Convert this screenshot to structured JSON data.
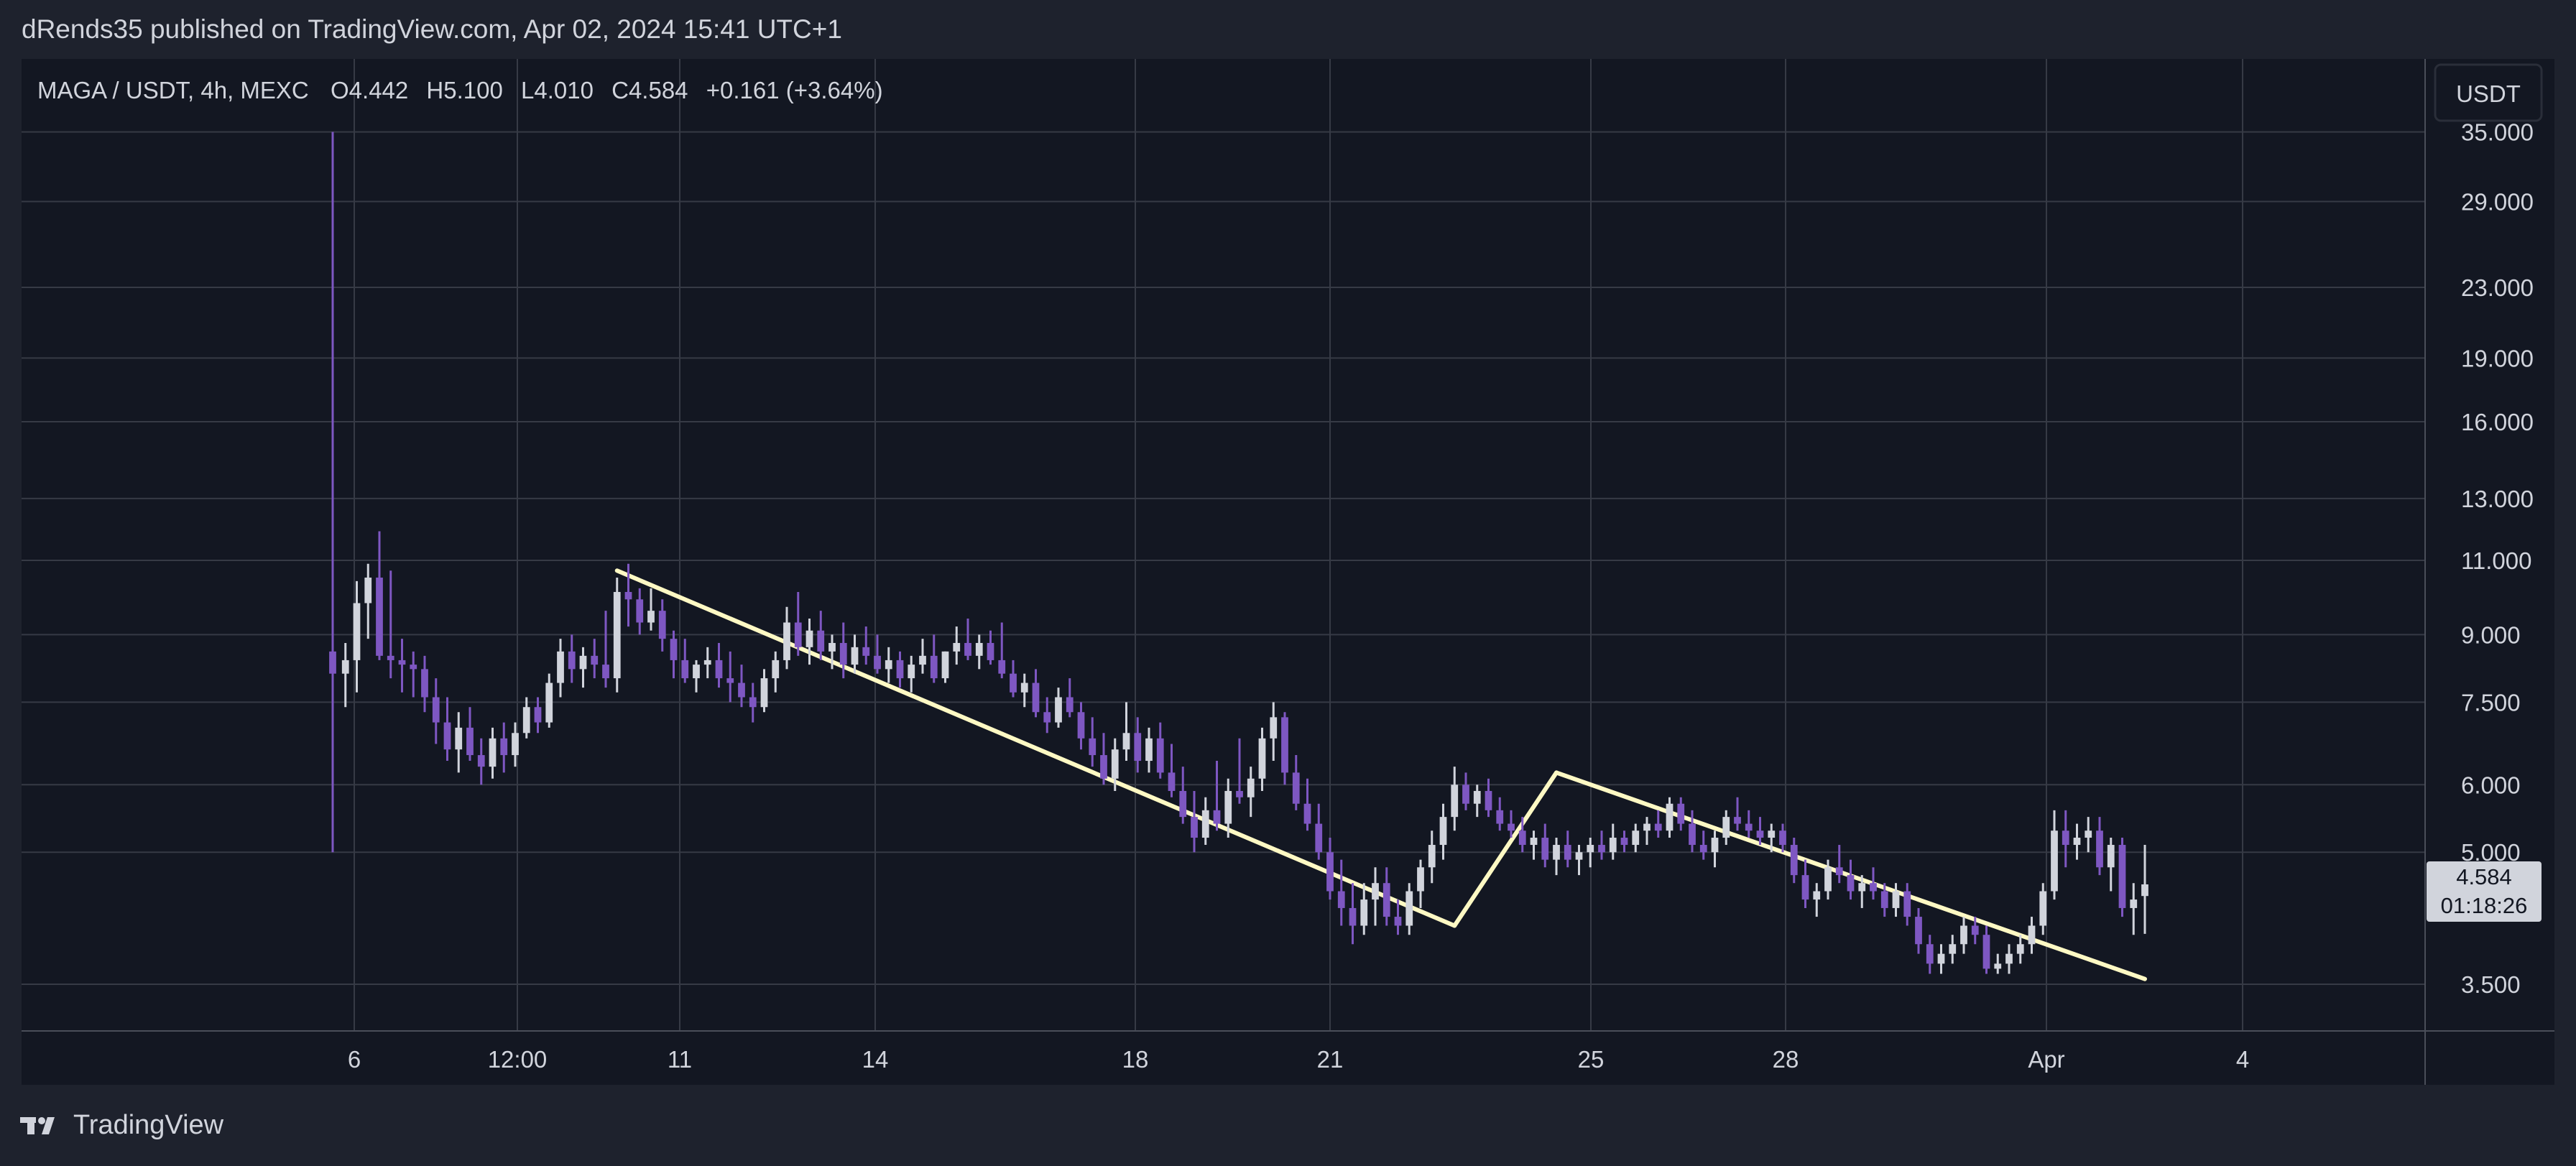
{
  "header": {
    "publish_info": "dRends35 published on TradingView.com, Apr 02, 2024 15:41 UTC+1"
  },
  "legend": {
    "symbol": "MAGA / USDT, 4h, MEXC",
    "open": "O4.442",
    "high": "H5.100",
    "low": "L4.010",
    "close": "C4.584",
    "change": "+0.161 (+3.64%)"
  },
  "price_axis": {
    "currency_button": "USDT",
    "ticks": [
      "35.000",
      "29.000",
      "23.000",
      "19.000",
      "16.000",
      "13.000",
      "11.000",
      "9.000",
      "7.500",
      "6.000",
      "5.000",
      "3.500"
    ],
    "last_price": "4.584",
    "countdown": "01:18:26"
  },
  "time_axis": {
    "ticks": [
      "6",
      "12:00",
      "11",
      "14",
      "18",
      "21",
      "25",
      "28",
      "Apr",
      "4"
    ]
  },
  "footer": {
    "brand": "TradingView"
  },
  "colors": {
    "background": "#131722",
    "frame": "#1e222d",
    "grid": "#363a45",
    "up_candle": "#d1d4dc",
    "down_candle": "#7e57c2",
    "trendline": "#fff9c4",
    "text": "#d1d4dc"
  },
  "chart_data": {
    "type": "candlestick",
    "symbol": "MAGA / USDT",
    "interval": "4h",
    "exchange": "MEXC",
    "y_scale": "log",
    "ylim": [
      3.2,
      35
    ],
    "x_ticks": [
      "6",
      "12:00",
      "11",
      "14",
      "18",
      "21",
      "25",
      "28",
      "Apr",
      "4"
    ],
    "y_ticks": [
      35,
      29,
      23,
      19,
      16,
      13,
      11,
      9,
      7.5,
      6,
      5,
      3.5
    ],
    "grid": true,
    "ohlc_note": "OHLC per 4h candle in chronological order, estimated from the chart",
    "candles": [
      [
        8.6,
        35.0,
        5.0,
        8.1
      ],
      [
        8.1,
        8.8,
        7.4,
        8.4
      ],
      [
        8.4,
        10.4,
        7.7,
        9.8
      ],
      [
        9.8,
        10.9,
        8.9,
        10.5
      ],
      [
        10.5,
        11.9,
        8.4,
        8.5
      ],
      [
        8.5,
        10.7,
        8.0,
        8.4
      ],
      [
        8.4,
        8.9,
        7.7,
        8.3
      ],
      [
        8.3,
        8.6,
        7.6,
        8.2
      ],
      [
        8.2,
        8.5,
        7.3,
        7.6
      ],
      [
        7.6,
        8.0,
        6.7,
        7.1
      ],
      [
        7.1,
        7.6,
        6.4,
        6.6
      ],
      [
        6.6,
        7.3,
        6.2,
        7.0
      ],
      [
        7.0,
        7.4,
        6.4,
        6.5
      ],
      [
        6.5,
        6.8,
        6.0,
        6.3
      ],
      [
        6.3,
        7.0,
        6.1,
        6.8
      ],
      [
        6.8,
        7.1,
        6.2,
        6.5
      ],
      [
        6.5,
        7.1,
        6.3,
        6.9
      ],
      [
        6.9,
        7.6,
        6.8,
        7.4
      ],
      [
        7.4,
        7.6,
        6.9,
        7.1
      ],
      [
        7.1,
        8.1,
        7.0,
        7.9
      ],
      [
        7.9,
        8.9,
        7.6,
        8.6
      ],
      [
        8.6,
        9.0,
        7.9,
        8.2
      ],
      [
        8.2,
        8.7,
        7.8,
        8.5
      ],
      [
        8.5,
        8.9,
        8.0,
        8.3
      ],
      [
        8.3,
        9.6,
        7.8,
        8.0
      ],
      [
        8.0,
        10.5,
        7.7,
        10.1
      ],
      [
        10.1,
        10.9,
        9.2,
        9.9
      ],
      [
        9.9,
        10.2,
        9.0,
        9.3
      ],
      [
        9.3,
        10.2,
        9.1,
        9.6
      ],
      [
        9.6,
        9.9,
        8.6,
        8.9
      ],
      [
        8.9,
        9.1,
        8.0,
        8.4
      ],
      [
        8.4,
        8.9,
        7.9,
        8.0
      ],
      [
        8.0,
        8.4,
        7.7,
        8.3
      ],
      [
        8.3,
        8.7,
        8.0,
        8.4
      ],
      [
        8.4,
        8.8,
        7.8,
        8.0
      ],
      [
        8.0,
        8.6,
        7.5,
        7.9
      ],
      [
        7.9,
        8.3,
        7.4,
        7.6
      ],
      [
        7.6,
        7.9,
        7.1,
        7.4
      ],
      [
        7.4,
        8.2,
        7.3,
        8.0
      ],
      [
        8.0,
        8.6,
        7.7,
        8.4
      ],
      [
        8.4,
        9.7,
        8.2,
        9.3
      ],
      [
        9.3,
        10.1,
        8.5,
        8.7
      ],
      [
        8.7,
        9.4,
        8.3,
        9.1
      ],
      [
        9.1,
        9.6,
        8.4,
        8.6
      ],
      [
        8.6,
        9.0,
        8.2,
        8.8
      ],
      [
        8.8,
        9.3,
        8.0,
        8.3
      ],
      [
        8.3,
        9.0,
        8.1,
        8.7
      ],
      [
        8.7,
        9.2,
        8.3,
        8.5
      ],
      [
        8.5,
        9.0,
        8.1,
        8.2
      ],
      [
        8.2,
        8.7,
        7.9,
        8.4
      ],
      [
        8.4,
        8.6,
        7.8,
        8.0
      ],
      [
        8.0,
        8.5,
        7.7,
        8.3
      ],
      [
        8.3,
        8.9,
        8.1,
        8.5
      ],
      [
        8.5,
        9.0,
        7.9,
        8.0
      ],
      [
        8.0,
        8.6,
        7.9,
        8.6
      ],
      [
        8.6,
        9.2,
        8.3,
        8.8
      ],
      [
        8.8,
        9.4,
        8.4,
        8.5
      ],
      [
        8.5,
        9.0,
        8.2,
        8.8
      ],
      [
        8.8,
        9.1,
        8.3,
        8.4
      ],
      [
        8.4,
        9.3,
        8.0,
        8.1
      ],
      [
        8.1,
        8.4,
        7.6,
        7.7
      ],
      [
        7.7,
        8.1,
        7.4,
        7.9
      ],
      [
        7.9,
        8.2,
        7.2,
        7.3
      ],
      [
        7.3,
        7.6,
        6.9,
        7.1
      ],
      [
        7.1,
        7.8,
        7.0,
        7.6
      ],
      [
        7.6,
        8.0,
        7.2,
        7.3
      ],
      [
        7.3,
        7.5,
        6.6,
        6.8
      ],
      [
        6.8,
        7.2,
        6.3,
        6.5
      ],
      [
        6.5,
        6.9,
        6.0,
        6.1
      ],
      [
        6.1,
        6.8,
        5.9,
        6.6
      ],
      [
        6.6,
        7.5,
        6.4,
        6.9
      ],
      [
        6.9,
        7.2,
        6.2,
        6.4
      ],
      [
        6.4,
        7.0,
        6.2,
        6.8
      ],
      [
        6.8,
        7.1,
        6.1,
        6.2
      ],
      [
        6.2,
        6.7,
        5.8,
        5.9
      ],
      [
        5.9,
        6.3,
        5.4,
        5.5
      ],
      [
        5.5,
        5.9,
        5.0,
        5.2
      ],
      [
        5.2,
        5.8,
        5.1,
        5.6
      ],
      [
        5.6,
        6.4,
        5.3,
        5.4
      ],
      [
        5.4,
        6.1,
        5.2,
        5.9
      ],
      [
        5.9,
        6.8,
        5.7,
        5.8
      ],
      [
        5.8,
        6.3,
        5.5,
        6.1
      ],
      [
        6.1,
        7.0,
        5.9,
        6.8
      ],
      [
        6.8,
        7.5,
        6.4,
        7.2
      ],
      [
        7.2,
        7.3,
        6.0,
        6.2
      ],
      [
        6.2,
        6.5,
        5.6,
        5.7
      ],
      [
        5.7,
        6.1,
        5.3,
        5.4
      ],
      [
        5.4,
        5.7,
        4.9,
        5.0
      ],
      [
        5.0,
        5.2,
        4.4,
        4.5
      ],
      [
        4.5,
        4.9,
        4.1,
        4.3
      ],
      [
        4.3,
        4.6,
        3.9,
        4.1
      ],
      [
        4.1,
        4.6,
        4.0,
        4.4
      ],
      [
        4.4,
        4.8,
        4.1,
        4.6
      ],
      [
        4.6,
        4.8,
        4.1,
        4.2
      ],
      [
        4.2,
        4.4,
        4.0,
        4.1
      ],
      [
        4.1,
        4.6,
        4.0,
        4.5
      ],
      [
        4.5,
        4.9,
        4.3,
        4.8
      ],
      [
        4.8,
        5.3,
        4.6,
        5.1
      ],
      [
        5.1,
        5.7,
        4.9,
        5.5
      ],
      [
        5.5,
        6.3,
        5.3,
        6.0
      ],
      [
        6.0,
        6.2,
        5.6,
        5.7
      ],
      [
        5.7,
        6.0,
        5.5,
        5.9
      ],
      [
        5.9,
        6.1,
        5.5,
        5.6
      ],
      [
        5.6,
        5.8,
        5.3,
        5.4
      ],
      [
        5.4,
        5.6,
        5.2,
        5.3
      ],
      [
        5.3,
        5.5,
        5.0,
        5.1
      ],
      [
        5.1,
        5.3,
        4.9,
        5.2
      ],
      [
        5.2,
        5.4,
        4.8,
        4.9
      ],
      [
        4.9,
        5.2,
        4.7,
        5.1
      ],
      [
        5.1,
        5.3,
        4.8,
        4.9
      ],
      [
        4.9,
        5.1,
        4.7,
        5.0
      ],
      [
        5.0,
        5.2,
        4.8,
        5.1
      ],
      [
        5.1,
        5.3,
        4.9,
        5.0
      ],
      [
        5.0,
        5.4,
        4.9,
        5.2
      ],
      [
        5.2,
        5.3,
        5.0,
        5.1
      ],
      [
        5.1,
        5.4,
        5.0,
        5.3
      ],
      [
        5.3,
        5.5,
        5.1,
        5.4
      ],
      [
        5.4,
        5.6,
        5.2,
        5.3
      ],
      [
        5.3,
        5.8,
        5.2,
        5.7
      ],
      [
        5.7,
        5.8,
        5.3,
        5.4
      ],
      [
        5.4,
        5.6,
        5.0,
        5.1
      ],
      [
        5.1,
        5.3,
        4.9,
        5.0
      ],
      [
        5.0,
        5.3,
        4.8,
        5.2
      ],
      [
        5.2,
        5.6,
        5.1,
        5.5
      ],
      [
        5.5,
        5.8,
        5.3,
        5.4
      ],
      [
        5.4,
        5.6,
        5.2,
        5.3
      ],
      [
        5.3,
        5.5,
        5.1,
        5.2
      ],
      [
        5.2,
        5.4,
        5.0,
        5.3
      ],
      [
        5.3,
        5.4,
        5.0,
        5.1
      ],
      [
        5.1,
        5.2,
        4.6,
        4.7
      ],
      [
        4.7,
        4.9,
        4.3,
        4.4
      ],
      [
        4.4,
        4.6,
        4.2,
        4.5
      ],
      [
        4.5,
        4.9,
        4.4,
        4.8
      ],
      [
        4.8,
        5.1,
        4.6,
        4.7
      ],
      [
        4.7,
        4.9,
        4.4,
        4.5
      ],
      [
        4.5,
        4.7,
        4.3,
        4.6
      ],
      [
        4.6,
        4.8,
        4.4,
        4.5
      ],
      [
        4.5,
        4.6,
        4.2,
        4.3
      ],
      [
        4.3,
        4.6,
        4.2,
        4.5
      ],
      [
        4.5,
        4.6,
        4.1,
        4.2
      ],
      [
        4.2,
        4.3,
        3.8,
        3.9
      ],
      [
        3.9,
        4.0,
        3.6,
        3.7
      ],
      [
        3.7,
        3.9,
        3.6,
        3.8
      ],
      [
        3.8,
        4.0,
        3.7,
        3.9
      ],
      [
        3.9,
        4.2,
        3.8,
        4.1
      ],
      [
        4.1,
        4.2,
        3.9,
        4.0
      ],
      [
        4.0,
        4.1,
        3.6,
        3.65
      ],
      [
        3.65,
        3.8,
        3.6,
        3.7
      ],
      [
        3.7,
        3.9,
        3.6,
        3.8
      ],
      [
        3.8,
        4.0,
        3.7,
        3.9
      ],
      [
        3.9,
        4.2,
        3.8,
        4.1
      ],
      [
        4.1,
        4.6,
        4.0,
        4.5
      ],
      [
        4.5,
        5.6,
        4.4,
        5.3
      ],
      [
        5.3,
        5.6,
        4.8,
        5.1
      ],
      [
        5.1,
        5.4,
        4.9,
        5.2
      ],
      [
        5.2,
        5.5,
        5.0,
        5.3
      ],
      [
        5.3,
        5.5,
        4.7,
        4.8
      ],
      [
        4.8,
        5.2,
        4.5,
        5.1
      ],
      [
        5.1,
        5.2,
        4.2,
        4.3
      ],
      [
        4.3,
        4.6,
        4.0,
        4.4
      ],
      [
        4.442,
        5.1,
        4.01,
        4.584
      ]
    ],
    "trendlines": [
      {
        "from": {
          "candle": 25,
          "price": 10.7
        },
        "to": {
          "candle": 99,
          "price": 4.1
        }
      },
      {
        "from": {
          "candle": 99,
          "price": 4.1
        },
        "to": {
          "candle": 108,
          "price": 6.2
        }
      },
      {
        "from": {
          "candle": 108,
          "price": 6.2
        },
        "to": {
          "candle": 160,
          "price": 3.55
        }
      }
    ]
  }
}
